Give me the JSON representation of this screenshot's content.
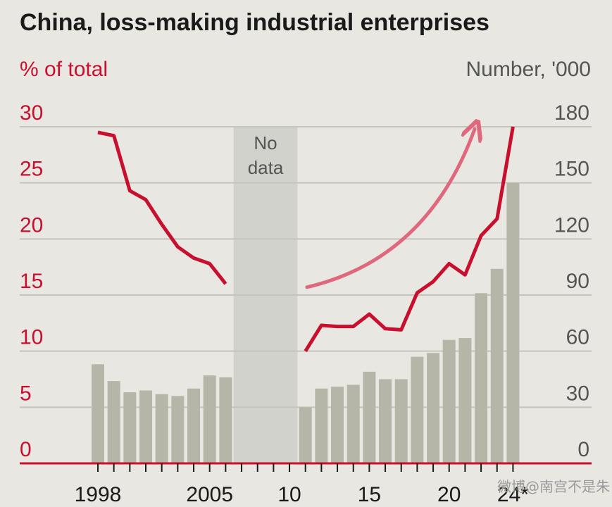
{
  "header": {
    "title": "China, loss-making industrial enterprises",
    "left_unit": "% of total",
    "right_unit": "Number, '000"
  },
  "chart_data": {
    "type": "bar",
    "title": "China, loss-making industrial enterprises",
    "x_ticks": [
      {
        "year": 1998,
        "label": "1998"
      },
      {
        "year": 2005,
        "label": "2005"
      },
      {
        "year": 2010,
        "label": "10"
      },
      {
        "year": 2015,
        "label": "15"
      },
      {
        "year": 2020,
        "label": "20"
      },
      {
        "year": 2024,
        "label": "24*"
      }
    ],
    "y_left": {
      "label": "% of total",
      "min": 0,
      "max": 30,
      "ticks": [
        0,
        5,
        10,
        15,
        20,
        25,
        30
      ]
    },
    "y_right": {
      "label": "Number, '000",
      "min": 0,
      "max": 180,
      "ticks": [
        0,
        30,
        60,
        90,
        120,
        150,
        180
      ]
    },
    "no_data": {
      "start": 2006.5,
      "end": 2010.5,
      "label_line1": "No",
      "label_line2": "data"
    },
    "series": [
      {
        "type": "bar",
        "axis": "right",
        "points": [
          [
            1998,
            53
          ],
          [
            1999,
            44
          ],
          [
            2000,
            38
          ],
          [
            2001,
            39
          ],
          [
            2002,
            37
          ],
          [
            2003,
            36
          ],
          [
            2004,
            40
          ],
          [
            2005,
            47
          ],
          [
            2006,
            46
          ],
          [
            2011,
            30
          ],
          [
            2012,
            40
          ],
          [
            2013,
            41
          ],
          [
            2014,
            42
          ],
          [
            2015,
            49
          ],
          [
            2016,
            45
          ],
          [
            2017,
            45
          ],
          [
            2018,
            57
          ],
          [
            2019,
            59
          ],
          [
            2020,
            66
          ],
          [
            2021,
            67
          ],
          [
            2022,
            91
          ],
          [
            2023,
            104
          ],
          [
            2024,
            150
          ]
        ]
      },
      {
        "type": "line",
        "axis": "left",
        "segments": [
          [
            [
              1998,
              29.5
            ],
            [
              1999,
              29.2
            ],
            [
              2000,
              24.3
            ],
            [
              2001,
              23.5
            ],
            [
              2002,
              21.3
            ],
            [
              2003,
              19.3
            ],
            [
              2004,
              18.3
            ],
            [
              2005,
              17.8
            ],
            [
              2006,
              16
            ]
          ],
          [
            [
              2011,
              10
            ],
            [
              2012,
              12.3
            ],
            [
              2013,
              12.2
            ],
            [
              2014,
              12.2
            ],
            [
              2015,
              13.3
            ],
            [
              2016,
              12
            ],
            [
              2017,
              11.9
            ],
            [
              2018,
              15.2
            ],
            [
              2019,
              16.2
            ],
            [
              2020,
              17.8
            ],
            [
              2021,
              16.8
            ],
            [
              2022,
              20.3
            ],
            [
              2023,
              21.8
            ],
            [
              2024,
              30
            ]
          ]
        ]
      }
    ],
    "annotation_arrow": {
      "from": [
        2011.1,
        15.7
      ],
      "to": [
        2021.6,
        29.8
      ]
    },
    "colors": {
      "line": "#c8102e",
      "bar": "#b6b6a8",
      "arrow": "#e0687c",
      "shade": "#d2d2cc",
      "grid": "#c4c4bc",
      "axis": "#c8102e"
    }
  },
  "watermark": "微博@南宫不是朱"
}
